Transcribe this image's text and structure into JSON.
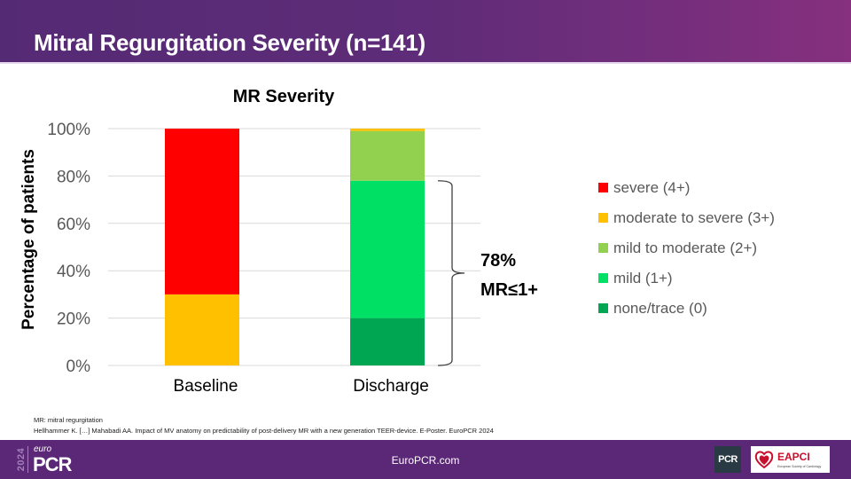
{
  "header": {
    "title": "Mitral Regurgitation Severity (n=141)"
  },
  "chart_data": {
    "type": "bar",
    "stacked": true,
    "title": "MR Severity",
    "xlabel": "",
    "ylabel": "Percentage of patients",
    "ylim": [
      0,
      100
    ],
    "yticks": [
      0,
      20,
      40,
      60,
      80,
      100
    ],
    "ytick_labels": [
      "0%",
      "20%",
      "40%",
      "60%",
      "80%",
      "100%"
    ],
    "grid": true,
    "legend_position": "right",
    "categories": [
      "Baseline",
      "Discharge"
    ],
    "series": [
      {
        "name": "none/trace (0)",
        "color": "#00a651",
        "values": [
          0,
          20
        ]
      },
      {
        "name": "mild (1+)",
        "color": "#00e064",
        "values": [
          0,
          58
        ]
      },
      {
        "name": "mild to moderate (2+)",
        "color": "#92d050",
        "values": [
          0,
          21
        ]
      },
      {
        "name": "moderate to severe (3+)",
        "color": "#ffc000",
        "values": [
          30,
          1
        ]
      },
      {
        "name": "severe (4+)",
        "color": "#ff0000",
        "values": [
          70,
          0
        ]
      }
    ],
    "legend_order": [
      "severe (4+)",
      "moderate to severe (3+)",
      "mild to moderate (2+)",
      "mild (1+)",
      "none/trace (0)"
    ],
    "annotation": {
      "line1": "78%",
      "line2": "MR≤1+",
      "spans_category": "Discharge",
      "range": [
        0,
        78
      ]
    }
  },
  "footnotes": {
    "abbreviation": "MR: mitral regurgitation",
    "citation": "Hellhammer K. […] Mahabadi AA. Impact of MV anatomy on predictability  of post-delivery  MR with  a new generation  TEER-device. E-Poster.  EuroPCR  2024"
  },
  "footer": {
    "url": "EuroPCR.com",
    "logo_year": "2024",
    "logo_euro": "euro",
    "logo_pcr": "PCR",
    "pcr_badge": "PCR",
    "eapci_label": "EAPCI",
    "eapci_sub": "European Society of Cardiology"
  }
}
